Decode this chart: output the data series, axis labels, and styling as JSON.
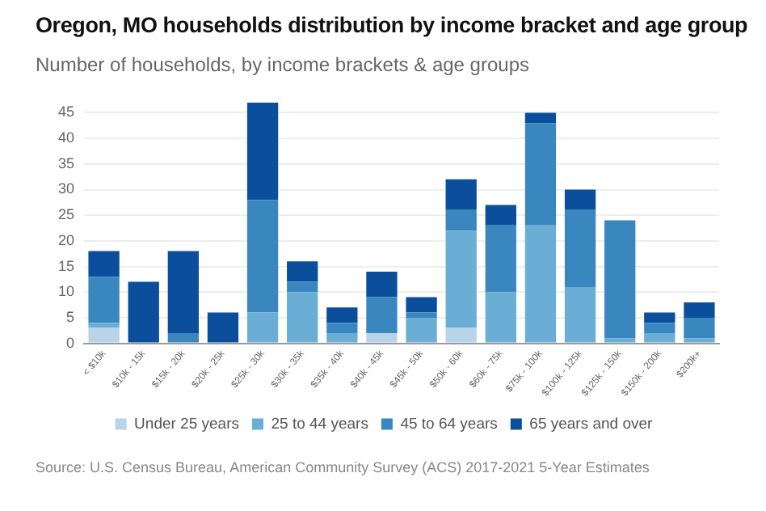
{
  "chart_data": {
    "type": "bar",
    "title": "Oregon, MO households distribution by income bracket and age group",
    "subtitle": "Number of households, by income brackets & age groups",
    "categories": [
      "< $10k",
      "$10k - 15k",
      "$15k - 20k",
      "$20k - 25k",
      "$25k - 30k",
      "$30k - 35k",
      "$35k - 40k",
      "$40k - 45k",
      "$45k - 50k",
      "$50k - 60k",
      "$60k - 75k",
      "$75k - 100k",
      "$100k - 125k",
      "$125k - 150k",
      "$150k - 200k",
      "$200k+"
    ],
    "stacked": true,
    "ylim": [
      0,
      47
    ],
    "yticks": [
      0,
      5,
      10,
      15,
      20,
      25,
      30,
      35,
      40,
      45
    ],
    "grid": "y",
    "legend": "bottom",
    "series": [
      {
        "name": "Under 25 years",
        "color": "#b9d3e8",
        "values": [
          3,
          0,
          0,
          0,
          0,
          0,
          0,
          2,
          0,
          3,
          0,
          0,
          0,
          0,
          0,
          0
        ]
      },
      {
        "name": "25 to 44 years",
        "color": "#6aaed6",
        "values": [
          1,
          0,
          0,
          0,
          6,
          10,
          2,
          0,
          5,
          19,
          10,
          23,
          11,
          1,
          2,
          1
        ]
      },
      {
        "name": "45 to 64 years",
        "color": "#3a87c0",
        "values": [
          9,
          0,
          2,
          0,
          22,
          2,
          2,
          7,
          1,
          4,
          13,
          20,
          15,
          23,
          2,
          4
        ]
      },
      {
        "name": "65 years and over",
        "color": "#0b4f9c",
        "values": [
          5,
          12,
          16,
          6,
          19,
          4,
          3,
          5,
          3,
          6,
          4,
          2,
          4,
          0,
          2,
          3
        ]
      }
    ],
    "annotations": [
      "Source: U.S. Census Bureau, American Community Survey (ACS) 2017-2021 5-Year Estimates"
    ]
  }
}
